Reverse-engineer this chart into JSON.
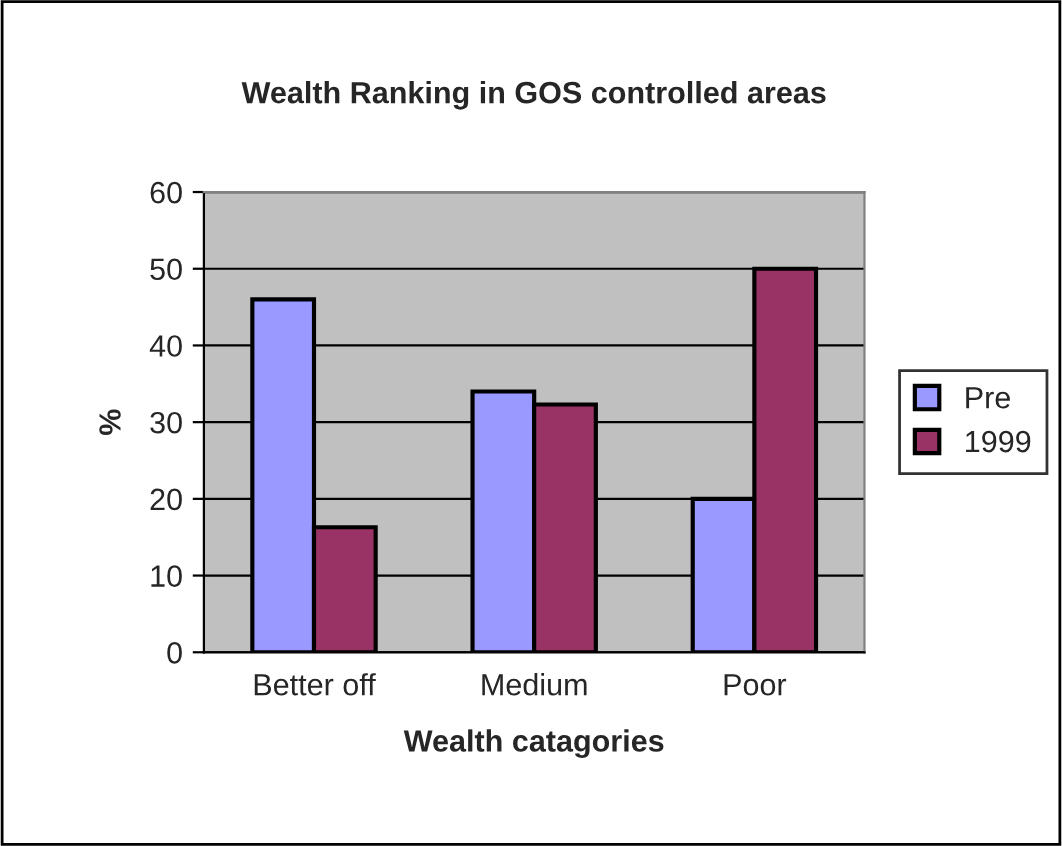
{
  "chart_data": {
    "type": "bar",
    "title": "Wealth Ranking in GOS controlled areas",
    "xlabel": "Wealth catagories",
    "ylabel": "%",
    "categories": [
      "Better off",
      "Medium",
      "Poor"
    ],
    "series": [
      {
        "name": "Pre",
        "color": "#9999ff",
        "values": [
          46,
          34,
          20
        ]
      },
      {
        "name": "1999",
        "color": "#993366",
        "values": [
          16.3,
          32.3,
          50
        ]
      }
    ],
    "ylim": [
      0,
      60
    ],
    "yticks": [
      0,
      10,
      20,
      30,
      40,
      50,
      60
    ],
    "grid": "y",
    "legend": "right"
  }
}
